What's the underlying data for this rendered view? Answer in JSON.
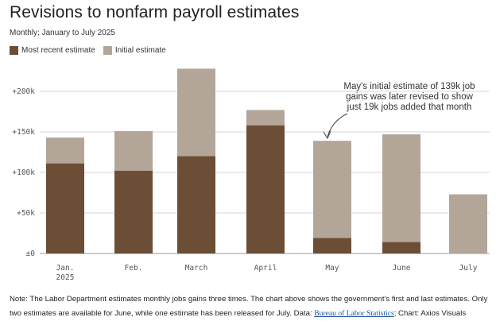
{
  "title": "Revisions to nonfarm payroll estimates",
  "subtitle": "Monthly; January to July 2025",
  "legend": {
    "recent": "Most recent estimate",
    "initial": "Initial estimate"
  },
  "colors": {
    "recent": "#6b4e35",
    "initial": "#b3a699",
    "grid": "#d6d6d6"
  },
  "annotation": {
    "lines": [
      "May's initial estimate of 139k job",
      "gains was later revised to show",
      "just 19k jobs added that month"
    ]
  },
  "footer": {
    "note_text": "Note: The Labor Department estimates monthly jobs gains three times. The chart above shows the government's first and last estimates. Only two estimates are available for June, while one estimate has been released for July. Data: ",
    "source_link": "Bureau of Labor Statistics",
    "credit_text": "; Chart: Axios Visuals"
  },
  "chart_data": {
    "type": "bar",
    "title": "Revisions to nonfarm payroll estimates",
    "subtitle": "Monthly; January to July 2025",
    "categories": [
      "Jan.",
      "Feb.",
      "March",
      "April",
      "May",
      "June",
      "July"
    ],
    "category_sublabels": [
      "2025",
      "",
      "",
      "",
      "",
      "",
      ""
    ],
    "series": [
      {
        "name": "Most recent estimate",
        "values": [
          111,
          102,
          120,
          158,
          19,
          14,
          null
        ]
      },
      {
        "name": "Initial estimate",
        "values": [
          143,
          151,
          228,
          177,
          139,
          147,
          73
        ]
      }
    ],
    "ylim": [
      0,
      250
    ],
    "yticks": [
      0,
      50,
      100,
      150,
      200
    ],
    "ytick_labels": [
      "±0",
      "+50k",
      "+100k",
      "+150k",
      "+200k"
    ],
    "units": "thousands of jobs",
    "grid": true,
    "legend_position": "top-left"
  }
}
